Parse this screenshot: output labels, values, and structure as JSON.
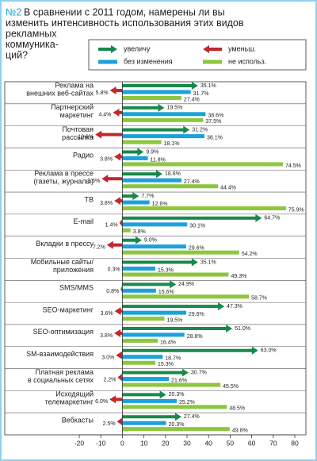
{
  "chart_data": {
    "type": "arrow-bar",
    "title_number": "№2",
    "title_lines": [
      "В сравнении с 2011 годом, намерены ли вы",
      "изменить интенсивность использования этих видов",
      "рекламных",
      "коммуника-",
      "ций?"
    ],
    "categories": [
      [
        "Реклама на",
        "внешних веб-сайтах"
      ],
      [
        "Партнерский",
        "маркетинг"
      ],
      [
        "Почтовая",
        "рассылка"
      ],
      [
        "Радио"
      ],
      [
        "Реклама в прессе",
        "(газеты, журналы)"
      ],
      [
        "ТВ"
      ],
      [
        "E-mail"
      ],
      [
        "Вкладки в прессу"
      ],
      [
        "Мобильные сайты/",
        "приложения"
      ],
      [
        "SMS/MMS"
      ],
      [
        "SEO-маркетинг"
      ],
      [
        "SEO-оптимизация"
      ],
      [
        "SM-взаимодействия"
      ],
      [
        "Платная реклама",
        "в социальных сетях"
      ],
      [
        "Исходящий",
        "телемаркетинг"
      ],
      [
        "Вебкасты"
      ]
    ],
    "series": [
      {
        "name": "увеличу",
        "color": "#17894a",
        "mark": "arrow",
        "direction": "right",
        "values": [
          35.1,
          19.5,
          31.2,
          9.9,
          18.6,
          7.7,
          64.7,
          9.0,
          35.1,
          24.9,
          47.3,
          51.0,
          63.0,
          30.7,
          20.3,
          27.4
        ],
        "value_labels": [
          "35.1%",
          "19.5%",
          "31.2%",
          "9.9%",
          "18.6%",
          "7.7%",
          "64.7%",
          "9.0%",
          "35.1%",
          "24.9%",
          "47.3%",
          "51.0%",
          "63.0%",
          "30.7%",
          "20.3%",
          "27.4%"
        ]
      },
      {
        "name": "уменьш.",
        "color": "#c1272d",
        "mark": "arrow",
        "direction": "left",
        "values": [
          5.8,
          4.4,
          12.6,
          3.8,
          9.6,
          3.8,
          1.4,
          7.2,
          0.3,
          0.8,
          3.6,
          3.8,
          3.0,
          2.2,
          6.0,
          2.5
        ],
        "value_labels": [
          "5.8%",
          "4.4%",
          "12.6%",
          "3.8%",
          "9.6%",
          "3.8%",
          "1.4%",
          "7.2%",
          "0.3%",
          "0.8%",
          "3.6%",
          "3.8%",
          "3.0%",
          "2.2%",
          "6.0%",
          "2.5%"
        ]
      },
      {
        "name": "без изменения",
        "color": "#1ba1db",
        "mark": "bar",
        "direction": "right",
        "values": [
          31.7,
          38.6,
          38.1,
          11.8,
          27.4,
          12.6,
          30.1,
          29.6,
          15.3,
          15.6,
          29.6,
          28.8,
          18.7,
          21.6,
          25.2,
          20.3
        ],
        "value_labels": [
          "31.7%",
          "38.6%",
          "38.1%",
          "11.8%",
          "27.4%",
          "12.6%",
          "30.1%",
          "29.6%",
          "15.3%",
          "15.6%",
          "29.6%",
          "28.8%",
          "18.7%",
          "21.6%",
          "25.2%",
          "20.3%"
        ]
      },
      {
        "name": "не использ.",
        "color": "#8dc63f",
        "mark": "bar",
        "direction": "right",
        "values": [
          27.4,
          37.5,
          18.1,
          74.5,
          44.4,
          75.9,
          3.8,
          54.2,
          49.3,
          58.7,
          19.5,
          16.4,
          15.3,
          45.5,
          48.5,
          49.8
        ],
        "value_labels": [
          "27.4%",
          "37.5%",
          "18.1%",
          "74.5%",
          "44.4%",
          "75.9%",
          "3.8%",
          "54.2%",
          "49.3%",
          "58.7%",
          "19.5%",
          "16.4%",
          "15.3%",
          "45.5%",
          "48.5%",
          "49.8%"
        ]
      }
    ],
    "xlim": [
      -20,
      80
    ],
    "xticks": [
      -20,
      -10,
      0,
      10,
      20,
      30,
      40,
      50,
      60,
      70,
      80
    ],
    "grid": false
  }
}
